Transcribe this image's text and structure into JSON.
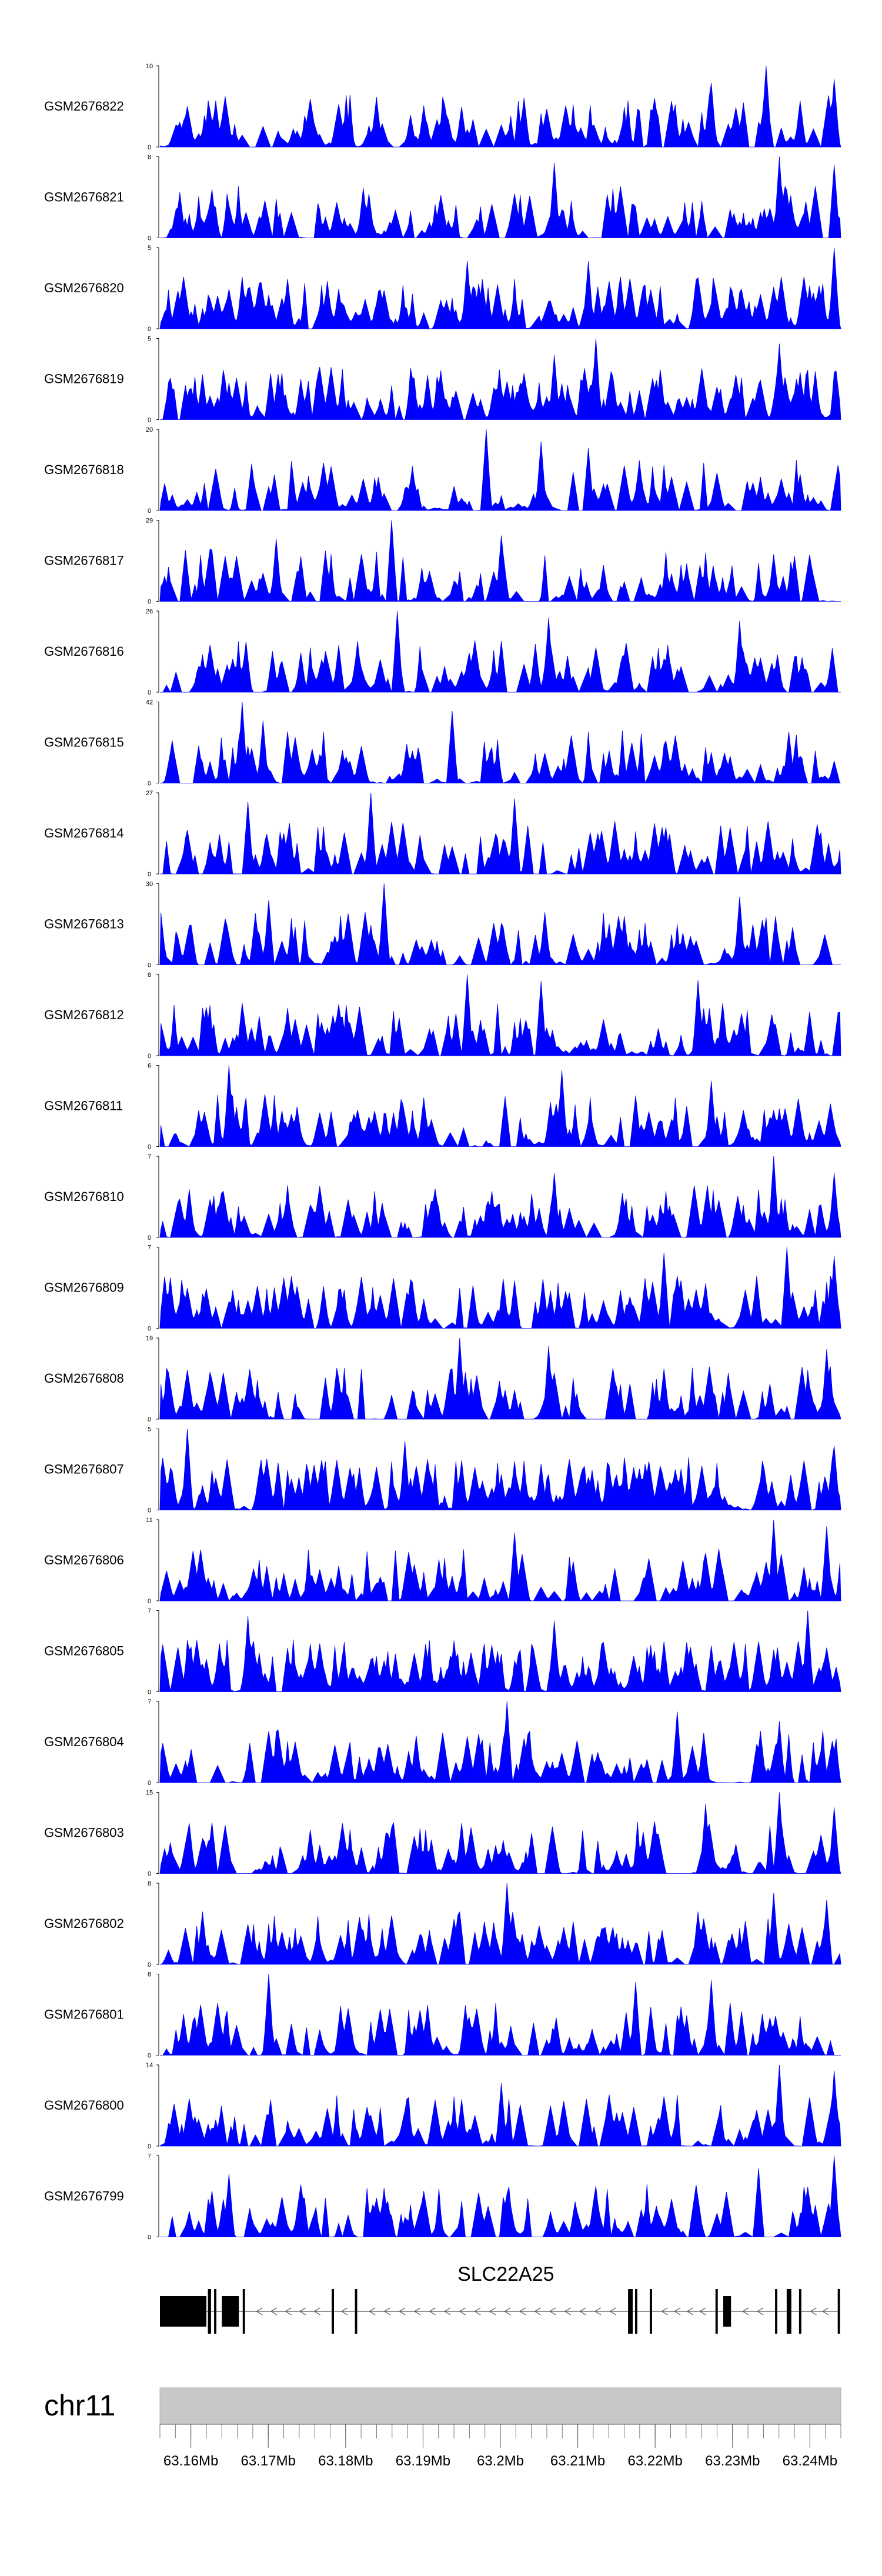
{
  "chart_data": {
    "type": "area",
    "title": "",
    "chromosome": "chr11",
    "gene": "SLC22A25",
    "x_unit": "Mb",
    "xlim": [
      63.156,
      63.244
    ],
    "x_ticks": [
      63.16,
      63.17,
      63.18,
      63.19,
      63.2,
      63.21,
      63.22,
      63.23,
      63.24
    ],
    "x_tick_labels": [
      "63.16Mb",
      "63.17Mb",
      "63.18Mb",
      "63.19Mb",
      "63.2Mb",
      "63.21Mb",
      "63.22Mb",
      "63.23Mb",
      "63.24Mb"
    ],
    "track_color": "#0000ff",
    "series": [
      {
        "name": "GSM2676822",
        "ymax": 10,
        "seed": 11,
        "density": 0.55,
        "tall_at": [
          0.89,
          0.81,
          0.99
        ]
      },
      {
        "name": "GSM2676821",
        "ymax": 8,
        "seed": 23,
        "density": 0.6,
        "tall_at": [
          0.91,
          0.58,
          0.99
        ]
      },
      {
        "name": "GSM2676820",
        "ymax": 5,
        "seed": 37,
        "density": 0.9,
        "tall_at": [
          0.99,
          0.63,
          0.45
        ]
      },
      {
        "name": "GSM2676819",
        "ymax": 5,
        "seed": 41,
        "density": 0.85,
        "tall_at": [
          0.64,
          0.58,
          0.91
        ]
      },
      {
        "name": "GSM2676818",
        "ymax": 20,
        "seed": 53,
        "density": 0.5,
        "tall_at": [
          0.48,
          0.56,
          0.63
        ]
      },
      {
        "name": "GSM2676817",
        "ymax": 29,
        "seed": 67,
        "density": 0.5,
        "tall_at": [
          0.34,
          0.17,
          0.5
        ]
      },
      {
        "name": "GSM2676816",
        "ymax": 26,
        "seed": 71,
        "density": 0.5,
        "tall_at": [
          0.35,
          0.57,
          0.85
        ]
      },
      {
        "name": "GSM2676815",
        "ymax": 42,
        "seed": 83,
        "density": 0.5,
        "tall_at": [
          0.12,
          0.15,
          0.43
        ]
      },
      {
        "name": "GSM2676814",
        "ymax": 27,
        "seed": 97,
        "density": 0.5,
        "tall_at": [
          0.31,
          0.13,
          0.52
        ]
      },
      {
        "name": "GSM2676813",
        "ymax": 30,
        "seed": 101,
        "density": 0.5,
        "tall_at": [
          0.33,
          0.85,
          0.16
        ]
      },
      {
        "name": "GSM2676812",
        "ymax": 8,
        "seed": 113,
        "density": 0.65,
        "tall_at": [
          0.45,
          0.56,
          0.79
        ]
      },
      {
        "name": "GSM2676811",
        "ymax": 6,
        "seed": 127,
        "density": 0.6,
        "tall_at": [
          0.1,
          0.59,
          0.81
        ]
      },
      {
        "name": "GSM2676810",
        "ymax": 7,
        "seed": 131,
        "density": 0.65,
        "tall_at": [
          0.9,
          0.58,
          0.99
        ]
      },
      {
        "name": "GSM2676809",
        "ymax": 7,
        "seed": 149,
        "density": 0.6,
        "tall_at": [
          0.92,
          0.99,
          0.74
        ]
      },
      {
        "name": "GSM2676808",
        "ymax": 19,
        "seed": 151,
        "density": 0.5,
        "tall_at": [
          0.44,
          0.57,
          0.98
        ]
      },
      {
        "name": "GSM2676807",
        "ymax": 5,
        "seed": 163,
        "density": 0.85,
        "tall_at": [
          0.04,
          0.36,
          0.99
        ]
      },
      {
        "name": "GSM2676806",
        "ymax": 11,
        "seed": 173,
        "density": 0.5,
        "tall_at": [
          0.9,
          0.98,
          0.52
        ]
      },
      {
        "name": "GSM2676805",
        "ymax": 7,
        "seed": 181,
        "density": 0.8,
        "tall_at": [
          0.95,
          0.13,
          0.58
        ]
      },
      {
        "name": "GSM2676804",
        "ymax": 7,
        "seed": 191,
        "density": 0.55,
        "tall_at": [
          0.51,
          0.91,
          0.76
        ]
      },
      {
        "name": "GSM2676803",
        "ymax": 15,
        "seed": 197,
        "density": 0.5,
        "tall_at": [
          0.91,
          0.99,
          0.8
        ]
      },
      {
        "name": "GSM2676802",
        "ymax": 8,
        "seed": 211,
        "density": 0.55,
        "tall_at": [
          0.51,
          0.98,
          0.9
        ]
      },
      {
        "name": "GSM2676801",
        "ymax": 8,
        "seed": 223,
        "density": 0.55,
        "tall_at": [
          0.16,
          0.7,
          0.81
        ]
      },
      {
        "name": "GSM2676800",
        "ymax": 14,
        "seed": 227,
        "density": 0.5,
        "tall_at": [
          0.91,
          0.99,
          0.5
        ]
      },
      {
        "name": "GSM2676799",
        "ymax": 7,
        "seed": 239,
        "density": 0.55,
        "tall_at": [
          0.99,
          0.1,
          0.88
        ]
      }
    ],
    "gene_model": {
      "strand": "-",
      "exons": [
        {
          "start": 63.156,
          "end": 63.162,
          "type": "coding"
        },
        {
          "start": 63.1622,
          "end": 63.1626,
          "type": "coding"
        },
        {
          "start": 63.163,
          "end": 63.1633,
          "type": "coding"
        },
        {
          "start": 63.164,
          "end": 63.1662,
          "type": "coding"
        },
        {
          "start": 63.1667,
          "end": 63.167,
          "type": "coding"
        },
        {
          "start": 63.1782,
          "end": 63.1785,
          "type": "coding"
        },
        {
          "start": 63.1812,
          "end": 63.1815,
          "type": "coding"
        },
        {
          "start": 63.2165,
          "end": 63.2171,
          "type": "coding"
        },
        {
          "start": 63.2174,
          "end": 63.2177,
          "type": "coding"
        },
        {
          "start": 63.2193,
          "end": 63.2196,
          "type": "coding"
        },
        {
          "start": 63.2278,
          "end": 63.2281,
          "type": "coding"
        },
        {
          "start": 63.2288,
          "end": 63.2298,
          "type": "coding"
        },
        {
          "start": 63.2355,
          "end": 63.2358,
          "type": "coding"
        },
        {
          "start": 63.237,
          "end": 63.2376,
          "type": "coding"
        },
        {
          "start": 63.2386,
          "end": 63.2389,
          "type": "coding"
        },
        {
          "start": 63.2436,
          "end": 63.2439,
          "type": "coding"
        }
      ]
    }
  }
}
